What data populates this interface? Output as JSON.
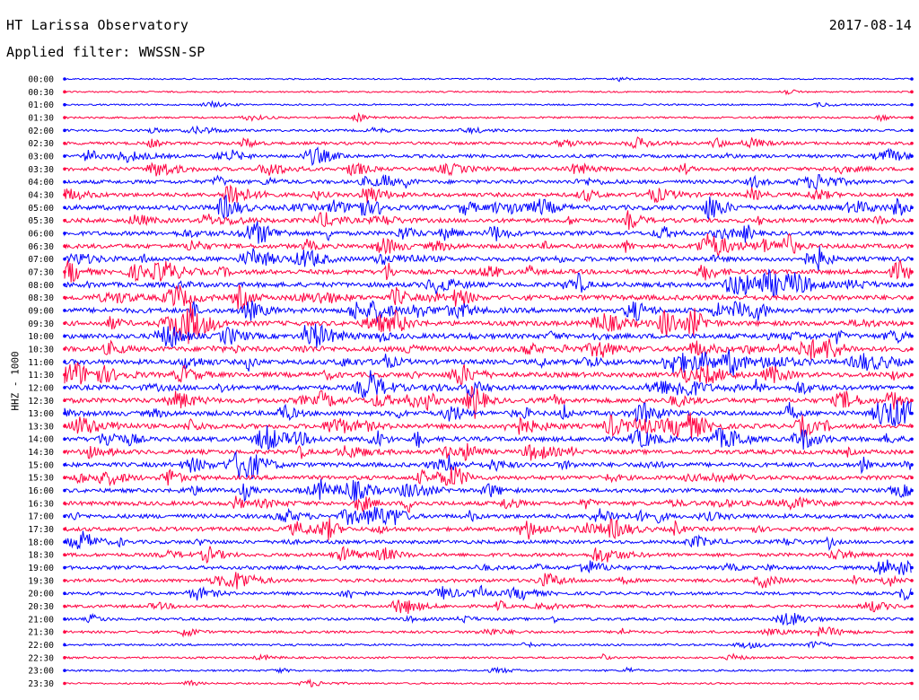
{
  "header": {
    "station": "HT Larissa Observatory",
    "date": "2017-08-14",
    "filter_text": "Applied filter: WWSSN-SP"
  },
  "chart_data": {
    "type": "line",
    "title": "HT Larissa Observatory",
    "subtitle": "Applied filter: WWSSN-SP",
    "ylabel": "HHZ - 1000",
    "xlabel": "",
    "rows": [
      "00:00",
      "00:30",
      "01:00",
      "01:30",
      "02:00",
      "02:30",
      "03:00",
      "03:30",
      "04:00",
      "04:30",
      "05:00",
      "05:30",
      "06:00",
      "06:30",
      "07:00",
      "07:30",
      "08:00",
      "08:30",
      "09:00",
      "09:30",
      "10:00",
      "10:30",
      "11:00",
      "11:30",
      "12:00",
      "12:30",
      "13:00",
      "13:30",
      "14:00",
      "14:30",
      "15:00",
      "15:30",
      "16:00",
      "16:30",
      "17:00",
      "17:30",
      "18:00",
      "18:30",
      "19:00",
      "19:30",
      "20:00",
      "20:30",
      "21:00",
      "21:30",
      "22:00",
      "22:30",
      "23:00",
      "23:30"
    ],
    "colors": [
      "#0000ff",
      "#ff0040"
    ],
    "row_activity": [
      0.08,
      0.1,
      0.12,
      0.18,
      0.3,
      0.45,
      0.55,
      0.6,
      0.65,
      0.7,
      0.9,
      0.75,
      0.75,
      0.8,
      0.8,
      0.85,
      0.9,
      0.95,
      0.95,
      0.9,
      0.95,
      0.95,
      0.9,
      0.9,
      0.9,
      0.9,
      0.9,
      0.85,
      0.85,
      0.8,
      0.8,
      0.75,
      0.7,
      0.75,
      0.75,
      0.7,
      0.6,
      0.6,
      0.6,
      0.55,
      0.5,
      0.45,
      0.4,
      0.35,
      0.25,
      0.2,
      0.18,
      0.15
    ],
    "grid": false,
    "legend": "none"
  }
}
